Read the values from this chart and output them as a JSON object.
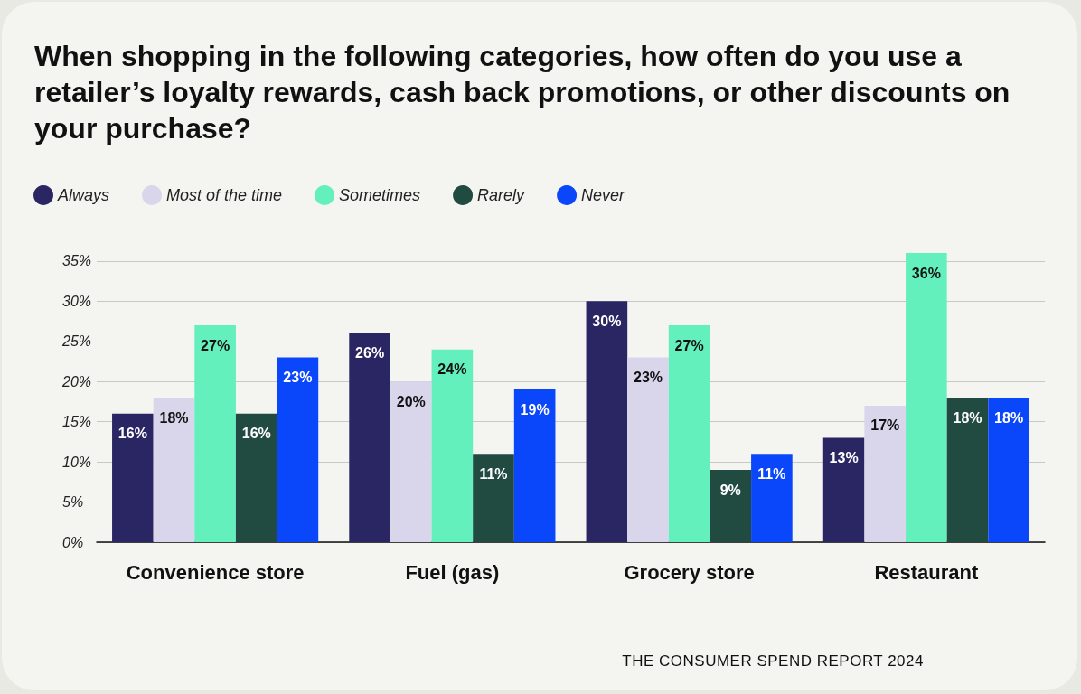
{
  "chart_data": {
    "type": "bar",
    "title": "When shopping in the following categories, how often do you use a retailer’s loyalty rewards, cash back promotions, or other discounts on your purchase?",
    "categories": [
      "Convenience store",
      "Fuel (gas)",
      "Grocery store",
      "Restaurant"
    ],
    "series": [
      {
        "name": "Always",
        "color": "#2a2563",
        "values": [
          16,
          26,
          30,
          13
        ],
        "value_labels": [
          "16%",
          "26%",
          "30%",
          "13%"
        ]
      },
      {
        "name": "Most of the time",
        "color": "#d9d6ec",
        "values": [
          18,
          20,
          23,
          17
        ],
        "value_labels": [
          "18%",
          "20%",
          "23%",
          "17%"
        ]
      },
      {
        "name": "Sometimes",
        "color": "#64f0bc",
        "values": [
          27,
          24,
          27,
          36
        ],
        "value_labels": [
          "27%",
          "24%",
          "27%",
          "36%"
        ]
      },
      {
        "name": "Rarely",
        "color": "#214a40",
        "values": [
          16,
          11,
          9,
          18
        ],
        "value_labels": [
          "16%",
          "11%",
          "9%",
          "18%"
        ]
      },
      {
        "name": "Never",
        "color": "#0a47fb",
        "values": [
          23,
          19,
          11,
          18
        ],
        "value_labels": [
          "23%",
          "19%",
          "11%",
          "18%"
        ]
      }
    ],
    "ylim": [
      0,
      36
    ],
    "yticks": [
      {
        "value": 0,
        "label": "0%"
      },
      {
        "value": 5,
        "label": "5%"
      },
      {
        "value": 10,
        "label": "10%"
      },
      {
        "value": 15,
        "label": "15%"
      },
      {
        "value": 20,
        "label": "20%"
      },
      {
        "value": 25,
        "label": "25%"
      },
      {
        "value": 30,
        "label": "30%"
      },
      {
        "value": 35,
        "label": "35%"
      }
    ],
    "grid": "y",
    "legend": "top left",
    "annotations": [
      "THE CONSUMER SPEND REPORT 2024"
    ]
  }
}
